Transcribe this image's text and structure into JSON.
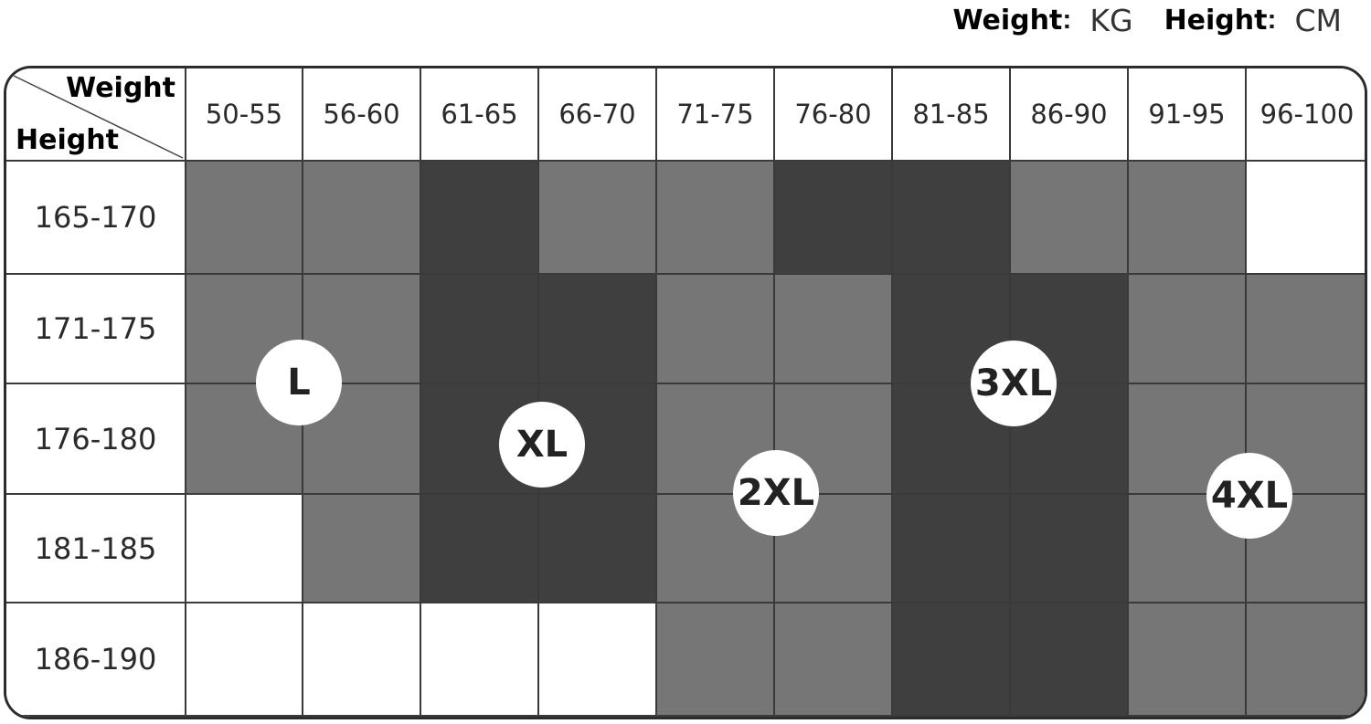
{
  "units": {
    "weight_label": "Weight",
    "weight_unit": "KG",
    "height_label": "Height",
    "height_unit": "CM",
    "separator": ":"
  },
  "colors": {
    "L": "#767676",
    "XL": "#3f3f3f",
    "2XL": "#767676",
    "3XL": "#3f3f3f",
    "4XL": "#767676",
    "none": "#ffffff",
    "border": "#3a3a3a"
  },
  "chart_data": {
    "type": "table",
    "title": "",
    "corner_weight_label": "Weight",
    "corner_height_label": "Height",
    "columns": [
      "50-55",
      "56-60",
      "61-65",
      "66-70",
      "71-75",
      "76-80",
      "81-85",
      "86-90",
      "91-95",
      "96-100"
    ],
    "rows": [
      "165-170",
      "171-175",
      "176-180",
      "181-185",
      "186-190"
    ],
    "cells": [
      [
        "L",
        "L",
        "XL",
        "2XL",
        "2XL",
        "3XL",
        "3XL",
        "4XL",
        "4XL",
        ""
      ],
      [
        "L",
        "L",
        "XL",
        "XL",
        "2XL",
        "2XL",
        "3XL",
        "3XL",
        "4XL",
        "4XL"
      ],
      [
        "L",
        "L",
        "XL",
        "XL",
        "2XL",
        "2XL",
        "3XL",
        "3XL",
        "4XL",
        "4XL"
      ],
      [
        "",
        "L",
        "XL",
        "XL",
        "2XL",
        "2XL",
        "3XL",
        "3XL",
        "4XL",
        "4XL"
      ],
      [
        "",
        "",
        "",
        "",
        "2XL",
        "2XL",
        "3XL",
        "3XL",
        "4XL",
        "4XL"
      ]
    ],
    "size_labels": [
      "L",
      "XL",
      "2XL",
      "3XL",
      "4XL"
    ]
  }
}
